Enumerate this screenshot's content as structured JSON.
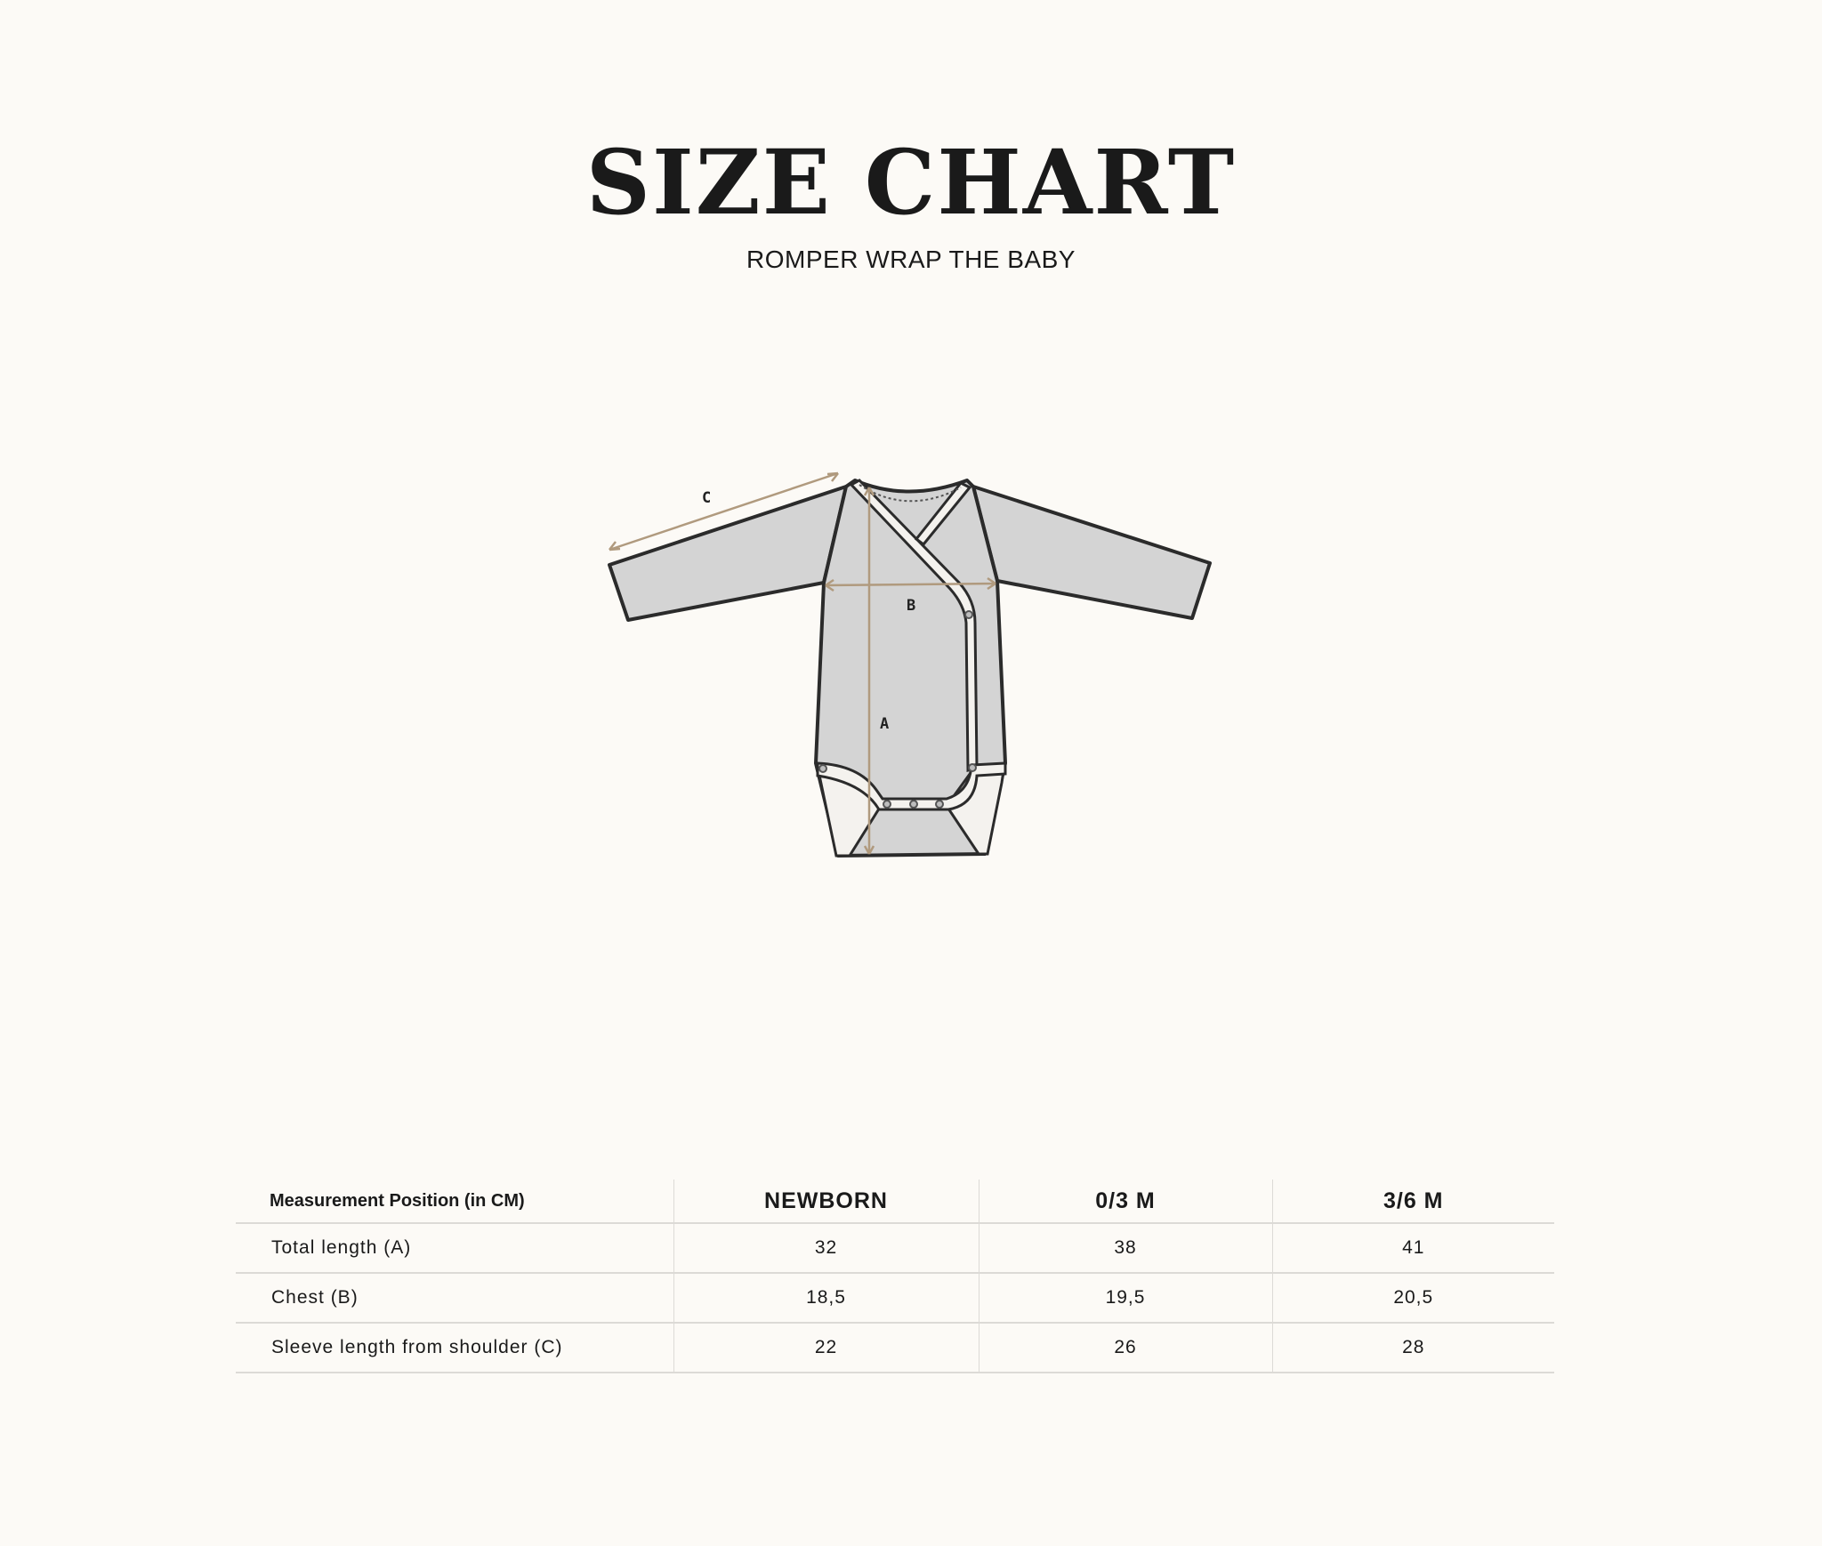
{
  "header": {
    "title": "SIZE CHART",
    "subtitle": "ROMPER WRAP THE BABY"
  },
  "illustration": {
    "labels": {
      "a": "A",
      "b": "B",
      "c": "C"
    },
    "colors": {
      "garment": "#d4d4d4",
      "outline": "#2b2b2b",
      "measure": "#b09a7e",
      "trim": "#f4f2ee"
    }
  },
  "table": {
    "headers": [
      "Measurement Position (in CM)",
      "NEWBORN",
      "0/3 M",
      "3/6 M"
    ],
    "rows": [
      {
        "label": "Total length (A)",
        "values": [
          "32",
          "38",
          "41"
        ]
      },
      {
        "label": "Chest (B)",
        "values": [
          "18,5",
          "19,5",
          "20,5"
        ]
      },
      {
        "label": "Sleeve length from shoulder (C)",
        "values": [
          "22",
          "26",
          "28"
        ]
      }
    ]
  }
}
